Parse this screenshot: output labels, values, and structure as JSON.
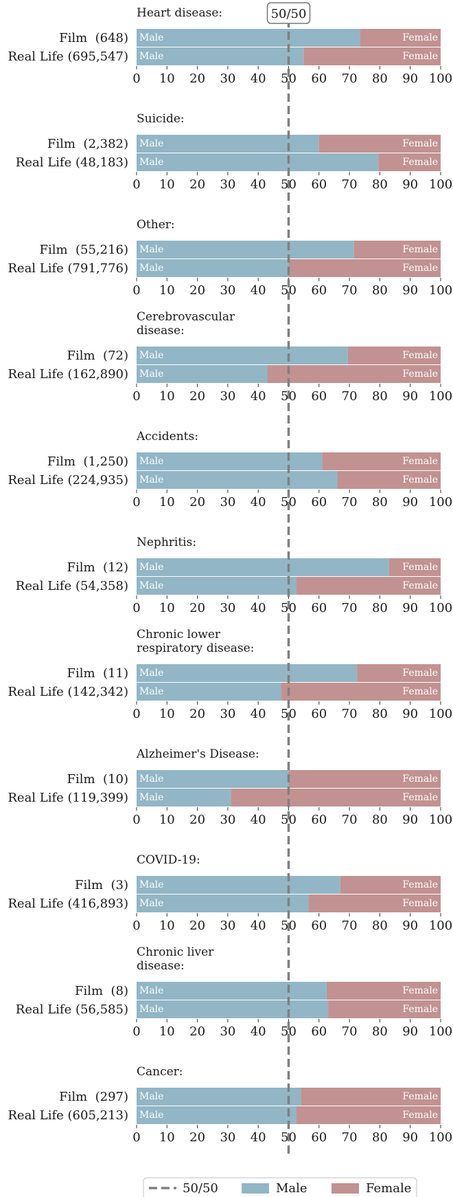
{
  "reference_label": "50/50",
  "legend": {
    "reference": "50/50",
    "male": "Male",
    "female": "Female"
  },
  "colors": {
    "male": "#92b6c6",
    "female": "#c19291",
    "reference": "#808080"
  },
  "chart_data": {
    "type": "bar",
    "orientation": "horizontal",
    "stacked": true,
    "xlim": [
      0,
      100
    ],
    "xticks": [
      0,
      10,
      20,
      30,
      40,
      50,
      60,
      70,
      80,
      90,
      100
    ],
    "reference_line": 50,
    "series": [
      {
        "name": "Male"
      },
      {
        "name": "Female"
      }
    ],
    "panels": [
      {
        "title": [
          "Heart disease:"
        ],
        "rows": [
          {
            "label": "Film  (648)",
            "male": 73.5
          },
          {
            "label": "Real Life (695,547)",
            "male": 55.0
          }
        ]
      },
      {
        "title": [
          "Suicide:"
        ],
        "rows": [
          {
            "label": "Film  (2,382)",
            "male": 60.0
          },
          {
            "label": "Real Life (48,183)",
            "male": 79.5
          }
        ]
      },
      {
        "title": [
          "Other:"
        ],
        "rows": [
          {
            "label": "Film  (55,216)",
            "male": 71.5
          },
          {
            "label": "Real Life (791,776)",
            "male": 50.0
          }
        ]
      },
      {
        "title": [
          "Cerebrovascular",
          "disease:"
        ],
        "rows": [
          {
            "label": "Film  (72)",
            "male": 69.5
          },
          {
            "label": "Real Life (162,890)",
            "male": 43.0
          }
        ]
      },
      {
        "title": [
          "Accidents:"
        ],
        "rows": [
          {
            "label": "Film  (1,250)",
            "male": 61.0
          },
          {
            "label": "Real Life (224,935)",
            "male": 66.0
          }
        ]
      },
      {
        "title": [
          "Nephritis:"
        ],
        "rows": [
          {
            "label": "Film  (12)",
            "male": 83.0
          },
          {
            "label": "Real Life (54,358)",
            "male": 52.5
          }
        ]
      },
      {
        "title": [
          "Chronic lower",
          "respiratory disease:"
        ],
        "rows": [
          {
            "label": "Film  (11)",
            "male": 72.5
          },
          {
            "label": "Real Life (142,342)",
            "male": 47.5
          }
        ]
      },
      {
        "title": [
          "Alzheimer's Disease:"
        ],
        "rows": [
          {
            "label": "Film  (10)",
            "male": 50.0
          },
          {
            "label": "Real Life (119,399)",
            "male": 31.0
          }
        ]
      },
      {
        "title": [
          "COVID-19:"
        ],
        "rows": [
          {
            "label": "Film  (3)",
            "male": 67.0
          },
          {
            "label": "Real Life (416,893)",
            "male": 56.5
          }
        ]
      },
      {
        "title": [
          "Chronic liver",
          "disease:"
        ],
        "rows": [
          {
            "label": "Film  (8)",
            "male": 62.5
          },
          {
            "label": "Real Life (56,585)",
            "male": 63.0
          }
        ]
      },
      {
        "title": [
          "Cancer:"
        ],
        "rows": [
          {
            "label": "Film  (297)",
            "male": 54.0
          },
          {
            "label": "Real Life (605,213)",
            "male": 52.5
          }
        ]
      }
    ]
  }
}
